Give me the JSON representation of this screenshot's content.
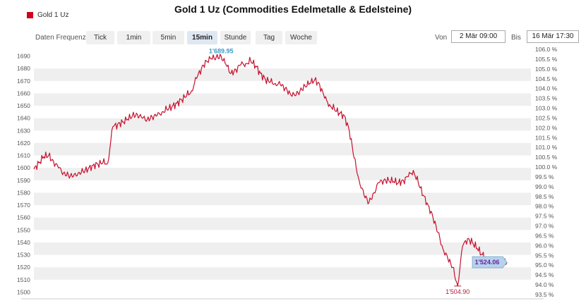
{
  "title": "Gold 1 Uz (Commodities Edelmetalle & Edelsteine)",
  "legend": {
    "label": "Gold 1 Uz",
    "color": "#d0021b"
  },
  "frequency": {
    "label": "Daten Frequenz",
    "buttons": [
      "Tick",
      "1min",
      "5min",
      "15min",
      "Stunde",
      "Tag",
      "Woche"
    ],
    "active": "15min"
  },
  "range": {
    "from_label": "Von",
    "from_value": "2 Mär 09:00",
    "to_label": "Bis",
    "to_value": "16 Mär 17:30"
  },
  "colors": {
    "line": "#c8102e",
    "band": "#efefef",
    "max_label": "#3a9bc8",
    "min_label": "#b0203a",
    "last_box": "#b5d3ea",
    "last_text": "#6a1fa6"
  },
  "annotations": {
    "max": "1'689.95",
    "min": "1'504.90",
    "last": "1'524.06"
  },
  "chart_data": {
    "type": "line",
    "title": "Gold 1 Uz (Commodities Edelmetalle & Edelsteine)",
    "series": [
      {
        "name": "Gold 1 Uz",
        "x_index": [
          0,
          5,
          10,
          15,
          20,
          25,
          30,
          35,
          40,
          45,
          50,
          55,
          60,
          65,
          70,
          75,
          80,
          85,
          90,
          95,
          100,
          105,
          110,
          115,
          120,
          125,
          130,
          135,
          140,
          145,
          150,
          155,
          160,
          165,
          170,
          175,
          180,
          185,
          190,
          195,
          200,
          205,
          210,
          215,
          220,
          225,
          230,
          235,
          240,
          245,
          250,
          255,
          260,
          265,
          270,
          275,
          280,
          285,
          290,
          295,
          300,
          305,
          310,
          315,
          320,
          325,
          330,
          335,
          340,
          345,
          350,
          355,
          360,
          365,
          370,
          375,
          380,
          385,
          390,
          395,
          400,
          405,
          410,
          415,
          420,
          425,
          430,
          435,
          440,
          445,
          450,
          455,
          460,
          465,
          470,
          475,
          480
        ],
        "values": [
          1599,
          1604,
          1609,
          1610,
          1605,
          1600,
          1596,
          1594,
          1593,
          1596,
          1597,
          1599,
          1602,
          1603,
          1604,
          1604,
          1633,
          1635,
          1637,
          1639,
          1642,
          1643,
          1640,
          1639,
          1641,
          1642,
          1645,
          1647,
          1649,
          1652,
          1655,
          1658,
          1662,
          1672,
          1680,
          1686,
          1688,
          1689,
          1689.95,
          1683,
          1676,
          1679,
          1683,
          1684,
          1686,
          1682,
          1676,
          1671,
          1669,
          1668,
          1667,
          1664,
          1660,
          1658,
          1662,
          1666,
          1668,
          1671,
          1667,
          1656,
          1651,
          1647,
          1644,
          1642,
          1630,
          1608,
          1590,
          1578,
          1572,
          1580,
          1588,
          1590,
          1590,
          1589,
          1588,
          1590,
          1593,
          1598,
          1588,
          1578,
          1570,
          1560,
          1548,
          1535,
          1527,
          1520,
          1504.9,
          1537,
          1543,
          1540,
          1535,
          1530,
          1527,
          1526,
          1525,
          1524.5,
          1524.06
        ]
      }
    ],
    "y_left": {
      "ticks": [
        1500,
        1510,
        1520,
        1530,
        1540,
        1550,
        1560,
        1570,
        1580,
        1590,
        1600,
        1610,
        1620,
        1630,
        1640,
        1650,
        1660,
        1670,
        1680,
        1690
      ],
      "range": [
        1498,
        1692
      ]
    },
    "y_right": {
      "ticks": [
        "93.5 %",
        "94.0 %",
        "94.5 %",
        "95.0 %",
        "95.5 %",
        "96.0 %",
        "96.5 %",
        "97.0 %",
        "97.5 %",
        "98.0 %",
        "98.5 %",
        "99.0 %",
        "99.5 %",
        "100.0 %",
        "100.5 %",
        "101.0 %",
        "101.5 %",
        "102.0 %",
        "102.5 %",
        "103.0 %",
        "103.5 %",
        "104.0 %",
        "104.5 %",
        "105.0 %",
        "105.5 %",
        "106.0 %"
      ],
      "range": [
        93.5,
        106.0
      ]
    },
    "max": 1689.95,
    "min": 1504.9,
    "last": 1524.06,
    "grid": "horizontal bands",
    "legend_position": "top-left"
  }
}
